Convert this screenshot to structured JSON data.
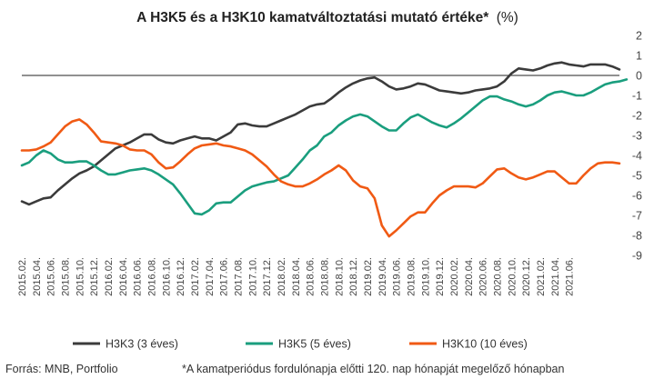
{
  "chart_data": {
    "type": "line",
    "title": "A H3K5 és a H3K10 kamatváltoztatási mutató értéke*",
    "title_unit": "(%)",
    "ylim": [
      -9,
      2
    ],
    "yticks": [
      "2",
      "1",
      "0",
      "-1",
      "-2",
      "-3",
      "-4",
      "-5",
      "-6",
      "-7",
      "-8",
      "-9"
    ],
    "x_tick_labels": [
      "2015.02.",
      "2015.04.",
      "2015.06.",
      "2015.08.",
      "2015.10.",
      "2015.12.",
      "2016.02.",
      "2016.04.",
      "2016.06.",
      "2016.08.",
      "2016.10.",
      "2016.12.",
      "2017.02.",
      "2017.04.",
      "2017.06.",
      "2017.08.",
      "2017.10.",
      "2017.12.",
      "2018.02.",
      "2018.04.",
      "2018.06.",
      "2018.08.",
      "2018.10.",
      "2018.12.",
      "2019.02.",
      "2019.04.",
      "2019.06.",
      "2019.08.",
      "2019.10.",
      "2019.12.",
      "2020.02.",
      "2020.04.",
      "2020.06.",
      "2020.08.",
      "2020.10.",
      "2020.12.",
      "2021.02.",
      "2021.04.",
      "2021.06."
    ],
    "x_start": "2015.02.",
    "x_interval": "1 month",
    "grid": false,
    "zero_line": true,
    "legend_placement": "bottom",
    "series": [
      {
        "name": "H3K3 (3 éves)",
        "color": "#3b3b3b",
        "values": [
          -6.3,
          -6.45,
          -6.3,
          -6.15,
          -6.1,
          -5.75,
          -5.45,
          -5.15,
          -4.9,
          -4.75,
          -4.55,
          -4.25,
          -3.95,
          -3.65,
          -3.5,
          -3.35,
          -3.15,
          -2.95,
          -2.95,
          -3.2,
          -3.35,
          -3.4,
          -3.25,
          -3.15,
          -3.05,
          -3.15,
          -3.15,
          -3.25,
          -3.05,
          -2.85,
          -2.45,
          -2.4,
          -2.5,
          -2.55,
          -2.55,
          -2.4,
          -2.25,
          -2.1,
          -1.95,
          -1.75,
          -1.55,
          -1.45,
          -1.4,
          -1.15,
          -0.85,
          -0.6,
          -0.4,
          -0.25,
          -0.15,
          -0.1,
          -0.3,
          -0.55,
          -0.7,
          -0.65,
          -0.55,
          -0.4,
          -0.45,
          -0.6,
          -0.75,
          -0.8,
          -0.85,
          -0.9,
          -0.85,
          -0.75,
          -0.7,
          -0.65,
          -0.55,
          -0.3,
          0.1,
          0.35,
          0.3,
          0.25,
          0.35,
          0.5,
          0.6,
          0.65,
          0.55,
          0.5,
          0.45,
          0.55,
          0.55,
          0.55,
          0.45,
          0.3
        ]
      },
      {
        "name": "H3K5 (5 éves)",
        "color": "#1a9e7e",
        "values": [
          -4.5,
          -4.35,
          -4.0,
          -3.75,
          -3.9,
          -4.2,
          -4.35,
          -4.35,
          -4.3,
          -4.3,
          -4.5,
          -4.75,
          -4.95,
          -4.95,
          -4.85,
          -4.75,
          -4.7,
          -4.65,
          -4.75,
          -4.95,
          -5.2,
          -5.45,
          -5.9,
          -6.4,
          -6.9,
          -6.95,
          -6.75,
          -6.4,
          -6.35,
          -6.35,
          -6.05,
          -5.75,
          -5.55,
          -5.45,
          -5.35,
          -5.3,
          -5.15,
          -5.0,
          -4.6,
          -4.2,
          -3.75,
          -3.5,
          -3.05,
          -2.85,
          -2.5,
          -2.25,
          -2.05,
          -1.95,
          -2.05,
          -2.3,
          -2.55,
          -2.75,
          -2.75,
          -2.4,
          -2.1,
          -1.95,
          -2.15,
          -2.35,
          -2.5,
          -2.6,
          -2.4,
          -2.15,
          -1.85,
          -1.55,
          -1.25,
          -1.05,
          -1.05,
          -1.2,
          -1.3,
          -1.45,
          -1.55,
          -1.45,
          -1.25,
          -1.0,
          -0.85,
          -0.8,
          -0.9,
          -1.0,
          -1.0,
          -0.85,
          -0.65,
          -0.45,
          -0.35,
          -0.3,
          -0.2
        ]
      },
      {
        "name": "H3K10 (10 éves)",
        "color": "#f05a14",
        "values": [
          -3.75,
          -3.75,
          -3.7,
          -3.55,
          -3.35,
          -2.95,
          -2.55,
          -2.3,
          -2.2,
          -2.45,
          -2.85,
          -3.3,
          -3.35,
          -3.4,
          -3.5,
          -3.7,
          -3.75,
          -3.75,
          -3.95,
          -4.35,
          -4.65,
          -4.6,
          -4.3,
          -3.95,
          -3.65,
          -3.5,
          -3.45,
          -3.4,
          -3.5,
          -3.55,
          -3.65,
          -3.75,
          -3.95,
          -4.25,
          -4.55,
          -4.95,
          -5.3,
          -5.45,
          -5.55,
          -5.55,
          -5.4,
          -5.2,
          -4.95,
          -4.75,
          -4.5,
          -4.75,
          -5.25,
          -5.55,
          -5.65,
          -6.15,
          -7.5,
          -8.05,
          -7.75,
          -7.4,
          -7.05,
          -6.85,
          -6.85,
          -6.4,
          -6.0,
          -5.75,
          -5.55,
          -5.55,
          -5.55,
          -5.6,
          -5.4,
          -5.05,
          -4.7,
          -4.65,
          -4.9,
          -5.1,
          -5.2,
          -5.1,
          -4.95,
          -4.8,
          -4.8,
          -5.1,
          -5.4,
          -5.4,
          -5.0,
          -4.65,
          -4.4,
          -4.35,
          -4.35,
          -4.4
        ]
      }
    ]
  },
  "footer": {
    "source": "Forrás: MNB, Portfolio",
    "note": "*A kamatperiódus fordulónapja előtti 120. nap hónapját megelőző hónapban"
  }
}
